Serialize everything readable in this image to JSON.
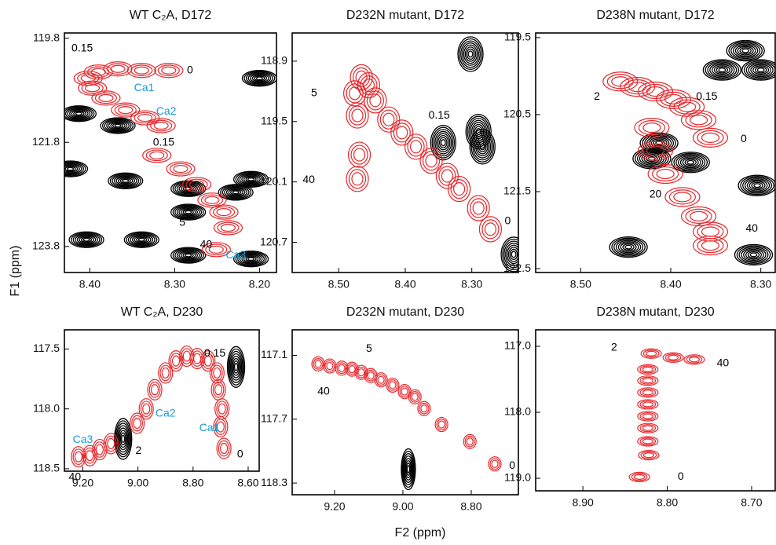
{
  "xlabel": "F2 (ppm)",
  "ylabel": "F1 (ppm)",
  "chart_data": [
    {
      "type": "contour",
      "title": "WT C₂A, D172",
      "xlim": [
        8.43,
        8.18
      ],
      "ylim": [
        119.7,
        124.3
      ],
      "xticks": [
        {
          "value": 8.4,
          "label": "8.40"
        },
        {
          "value": 8.3,
          "label": "8.30"
        },
        {
          "value": 8.2,
          "label": "8.20"
        }
      ],
      "yticks": [
        119.8,
        121.8,
        123.8
      ],
      "peaks": {
        "color": "#e8262b",
        "x": [
          8.307,
          8.339,
          8.367,
          8.39,
          8.402,
          8.397,
          8.381,
          8.358,
          8.335,
          8.316,
          8.321,
          8.293,
          8.274,
          8.256,
          8.242,
          8.237,
          8.251
        ],
        "y": [
          120.42,
          120.42,
          120.39,
          120.45,
          120.57,
          120.76,
          120.95,
          121.18,
          121.33,
          121.48,
          122.05,
          122.31,
          122.61,
          122.91,
          123.14,
          123.44,
          123.86
        ]
      },
      "background_peaks": {
        "color": "#000000",
        "x": [
          8.2,
          8.413,
          8.367,
          8.423,
          8.358,
          8.284,
          8.228,
          8.21,
          8.284,
          8.404,
          8.339,
          8.284,
          8.21
        ],
        "y": [
          120.57,
          121.25,
          121.48,
          122.31,
          122.54,
          122.69,
          122.76,
          122.51,
          123.14,
          123.67,
          123.67,
          123.97,
          124.04
        ]
      },
      "annotations": [
        {
          "text": "0.15",
          "x": 8.409,
          "y": 120.0,
          "color": "#000000"
        },
        {
          "text": "0",
          "x": 8.282,
          "y": 120.42,
          "color": "#000000"
        },
        {
          "text": "Ca1",
          "x": 8.336,
          "y": 120.76,
          "color": "#1a9bd7"
        },
        {
          "text": "Ca2",
          "x": 8.31,
          "y": 121.21,
          "color": "#1a9bd7"
        },
        {
          "text": "0.15",
          "x": 8.313,
          "y": 121.81,
          "color": "#000000"
        },
        {
          "text": "5",
          "x": 8.291,
          "y": 123.35,
          "color": "#000000"
        },
        {
          "text": "40",
          "x": 8.263,
          "y": 123.77,
          "color": "#000000"
        },
        {
          "text": "Ca3",
          "x": 8.228,
          "y": 123.97,
          "color": "#1a9bd7"
        }
      ]
    },
    {
      "type": "contour",
      "title": "D232N mutant, D172",
      "xlim": [
        8.57,
        8.23
      ],
      "ylim": [
        118.62,
        121.0
      ],
      "xticks": [
        {
          "value": 8.5,
          "label": "8.50"
        },
        {
          "value": 8.4,
          "label": "8.40"
        },
        {
          "value": 8.3,
          "label": "8.30"
        }
      ],
      "yticks": [
        118.9,
        119.5,
        120.1,
        120.7
      ],
      "peaks": {
        "color": "#e8262b",
        "x": [
          8.272,
          8.29,
          8.319,
          8.337,
          8.361,
          8.384,
          8.405,
          8.425,
          8.445,
          8.455,
          8.466,
          8.476,
          8.472,
          8.469,
          8.472
        ],
        "y": [
          120.57,
          120.36,
          120.17,
          120.04,
          119.89,
          119.75,
          119.61,
          119.48,
          119.29,
          119.14,
          119.06,
          119.22,
          119.44,
          119.83,
          120.07
        ]
      },
      "background_peaks": {
        "color": "#000000",
        "x": [
          8.302,
          8.343,
          8.284,
          8.29,
          8.237
        ],
        "y": [
          118.83,
          119.71,
          119.75,
          119.6,
          120.82
        ]
      },
      "annotations": [
        {
          "text": "5",
          "x": 8.537,
          "y": 119.22,
          "color": "#000000"
        },
        {
          "text": "0.15",
          "x": 8.349,
          "y": 119.44,
          "color": "#000000"
        },
        {
          "text": "40",
          "x": 8.545,
          "y": 120.08,
          "color": "#000000"
        },
        {
          "text": "0",
          "x": 8.246,
          "y": 120.49,
          "color": "#000000"
        }
      ]
    },
    {
      "type": "contour",
      "title": "D238N mutant, D172",
      "xlim": [
        8.55,
        8.284
      ],
      "ylim": [
        119.44,
        122.55
      ],
      "xticks": [
        {
          "value": 8.5,
          "label": "8.50"
        },
        {
          "value": 8.4,
          "label": "8.40"
        },
        {
          "value": 8.3,
          "label": "8.30"
        }
      ],
      "yticks": [
        119.5,
        120.5,
        121.5,
        122.5
      ],
      "peaks": {
        "color": "#e8262b",
        "x": [
          8.456,
          8.437,
          8.417,
          8.397,
          8.382,
          8.369,
          8.356,
          8.421,
          8.417,
          8.406,
          8.387,
          8.369,
          8.356,
          8.356
        ],
        "y": [
          120.07,
          120.14,
          120.2,
          120.3,
          120.4,
          120.57,
          120.8,
          120.67,
          120.97,
          121.27,
          121.57,
          121.82,
          122.02,
          122.2
        ]
      },
      "background_peaks": {
        "color": "#000000",
        "x": [
          8.317,
          8.343,
          8.3,
          8.421,
          8.378,
          8.304,
          8.447,
          8.308,
          8.413
        ],
        "y": [
          119.67,
          119.92,
          119.92,
          121.07,
          121.12,
          121.42,
          122.22,
          122.32,
          120.87
        ]
      },
      "annotations": [
        {
          "text": "2",
          "x": 8.482,
          "y": 120.27,
          "color": "#000000"
        },
        {
          "text": "0.15",
          "x": 8.36,
          "y": 120.27,
          "color": "#000000"
        },
        {
          "text": "0",
          "x": 8.319,
          "y": 120.82,
          "color": "#000000"
        },
        {
          "text": "20",
          "x": 8.417,
          "y": 121.54,
          "color": "#000000"
        },
        {
          "text": "40",
          "x": 8.31,
          "y": 121.98,
          "color": "#000000"
        }
      ]
    },
    {
      "type": "contour",
      "title": "WT C₂A,  D230",
      "xlim": [
        9.267,
        8.56
      ],
      "ylim": [
        117.34,
        118.52
      ],
      "xticks": [
        {
          "value": 9.2,
          "label": "9.20"
        },
        {
          "value": 9.0,
          "label": "9.00"
        },
        {
          "value": 8.8,
          "label": "8.80"
        },
        {
          "value": 8.6,
          "label": "8.60"
        }
      ],
      "yticks": [
        117.5,
        {
          "value": 118.0,
          "label": "118.0"
        },
        118.5
      ],
      "peaks": {
        "color": "#e8262b",
        "x": [
          9.216,
          9.175,
          9.139,
          9.098,
          9.003,
          8.97,
          8.939,
          8.9,
          8.862,
          8.823,
          8.785,
          8.746,
          8.713,
          8.708,
          8.695,
          8.7,
          8.688
        ],
        "y": [
          118.4,
          118.39,
          118.34,
          118.29,
          118.12,
          118.0,
          117.84,
          117.7,
          117.6,
          117.56,
          117.58,
          117.6,
          117.7,
          117.84,
          118.0,
          118.15,
          118.33
        ]
      },
      "background_peaks": {
        "color": "#000000",
        "x": [
          9.054,
          8.644
        ],
        "y": [
          118.25,
          117.65
        ]
      },
      "annotations": [
        {
          "text": "0.15",
          "x": 8.721,
          "y": 117.54,
          "color": "#000000"
        },
        {
          "text": "Ca2",
          "x": 8.9,
          "y": 118.04,
          "color": "#1a9bd7"
        },
        {
          "text": "Ca1",
          "x": 8.741,
          "y": 118.16,
          "color": "#1a9bd7"
        },
        {
          "text": "Ca3",
          "x": 9.2,
          "y": 118.26,
          "color": "#1a9bd7"
        },
        {
          "text": "2",
          "x": 8.998,
          "y": 118.35,
          "color": "#000000"
        },
        {
          "text": "40",
          "x": 9.229,
          "y": 118.57,
          "color": "#000000"
        },
        {
          "text": "0",
          "x": 8.629,
          "y": 118.38,
          "color": "#000000"
        }
      ]
    },
    {
      "type": "contour",
      "title": "D232N mutant, D230",
      "xlim": [
        9.324,
        8.662
      ],
      "ylim": [
        116.86,
        118.41
      ],
      "xticks": [
        {
          "value": 9.2,
          "label": "9.20"
        },
        {
          "value": 9.0,
          "label": "9.00"
        },
        {
          "value": 8.8,
          "label": "8.80"
        }
      ],
      "yticks": [
        117.1,
        117.7,
        118.3
      ],
      "peaks": {
        "color": "#e8262b",
        "x": [
          9.248,
          9.214,
          9.179,
          9.149,
          9.122,
          9.094,
          9.064,
          9.03,
          8.995,
          8.965,
          8.938,
          8.887,
          8.804,
          8.731
        ],
        "y": [
          117.18,
          117.2,
          117.22,
          117.23,
          117.26,
          117.29,
          117.33,
          117.38,
          117.44,
          117.49,
          117.6,
          117.75,
          117.91,
          118.12
        ]
      },
      "background_peaks": {
        "color": "#000000",
        "x": [
          8.984
        ],
        "y": [
          118.17
        ]
      },
      "annotations": [
        {
          "text": "5",
          "x": 9.099,
          "y": 117.04,
          "color": "#000000"
        },
        {
          "text": "40",
          "x": 9.232,
          "y": 117.44,
          "color": "#000000"
        },
        {
          "text": "0",
          "x": 8.68,
          "y": 118.14,
          "color": "#000000"
        }
      ]
    },
    {
      "type": "contour",
      "title": "D238N mutant, D230",
      "xlim": [
        8.956,
        8.672
      ],
      "ylim": [
        116.75,
        119.19
      ],
      "xticks": [
        {
          "value": 8.9,
          "label": "8.90"
        },
        {
          "value": 8.8,
          "label": "8.80"
        },
        {
          "value": 8.7,
          "label": "8.70"
        }
      ],
      "yticks": [
        {
          "value": 117.0,
          "label": "117.0"
        },
        {
          "value": 118.0,
          "label": "118.0"
        },
        {
          "value": 119.0,
          "label": "119.0"
        }
      ],
      "peaks": {
        "color": "#e8262b",
        "x": [
          8.819,
          8.793,
          8.768,
          8.823,
          8.823,
          8.823,
          8.823,
          8.823,
          8.823,
          8.823,
          8.822,
          8.833
        ],
        "y": [
          117.11,
          117.17,
          117.2,
          117.35,
          117.52,
          117.7,
          117.88,
          118.06,
          118.24,
          118.44,
          118.65,
          118.98
        ]
      },
      "background_peaks": {
        "color": "#000000",
        "x": [],
        "y": []
      },
      "annotations": [
        {
          "text": "2",
          "x": 8.863,
          "y": 117.02,
          "color": "#000000"
        },
        {
          "text": "40",
          "x": 8.734,
          "y": 117.26,
          "color": "#000000"
        },
        {
          "text": "0",
          "x": 8.784,
          "y": 118.98,
          "color": "#000000"
        }
      ]
    }
  ]
}
